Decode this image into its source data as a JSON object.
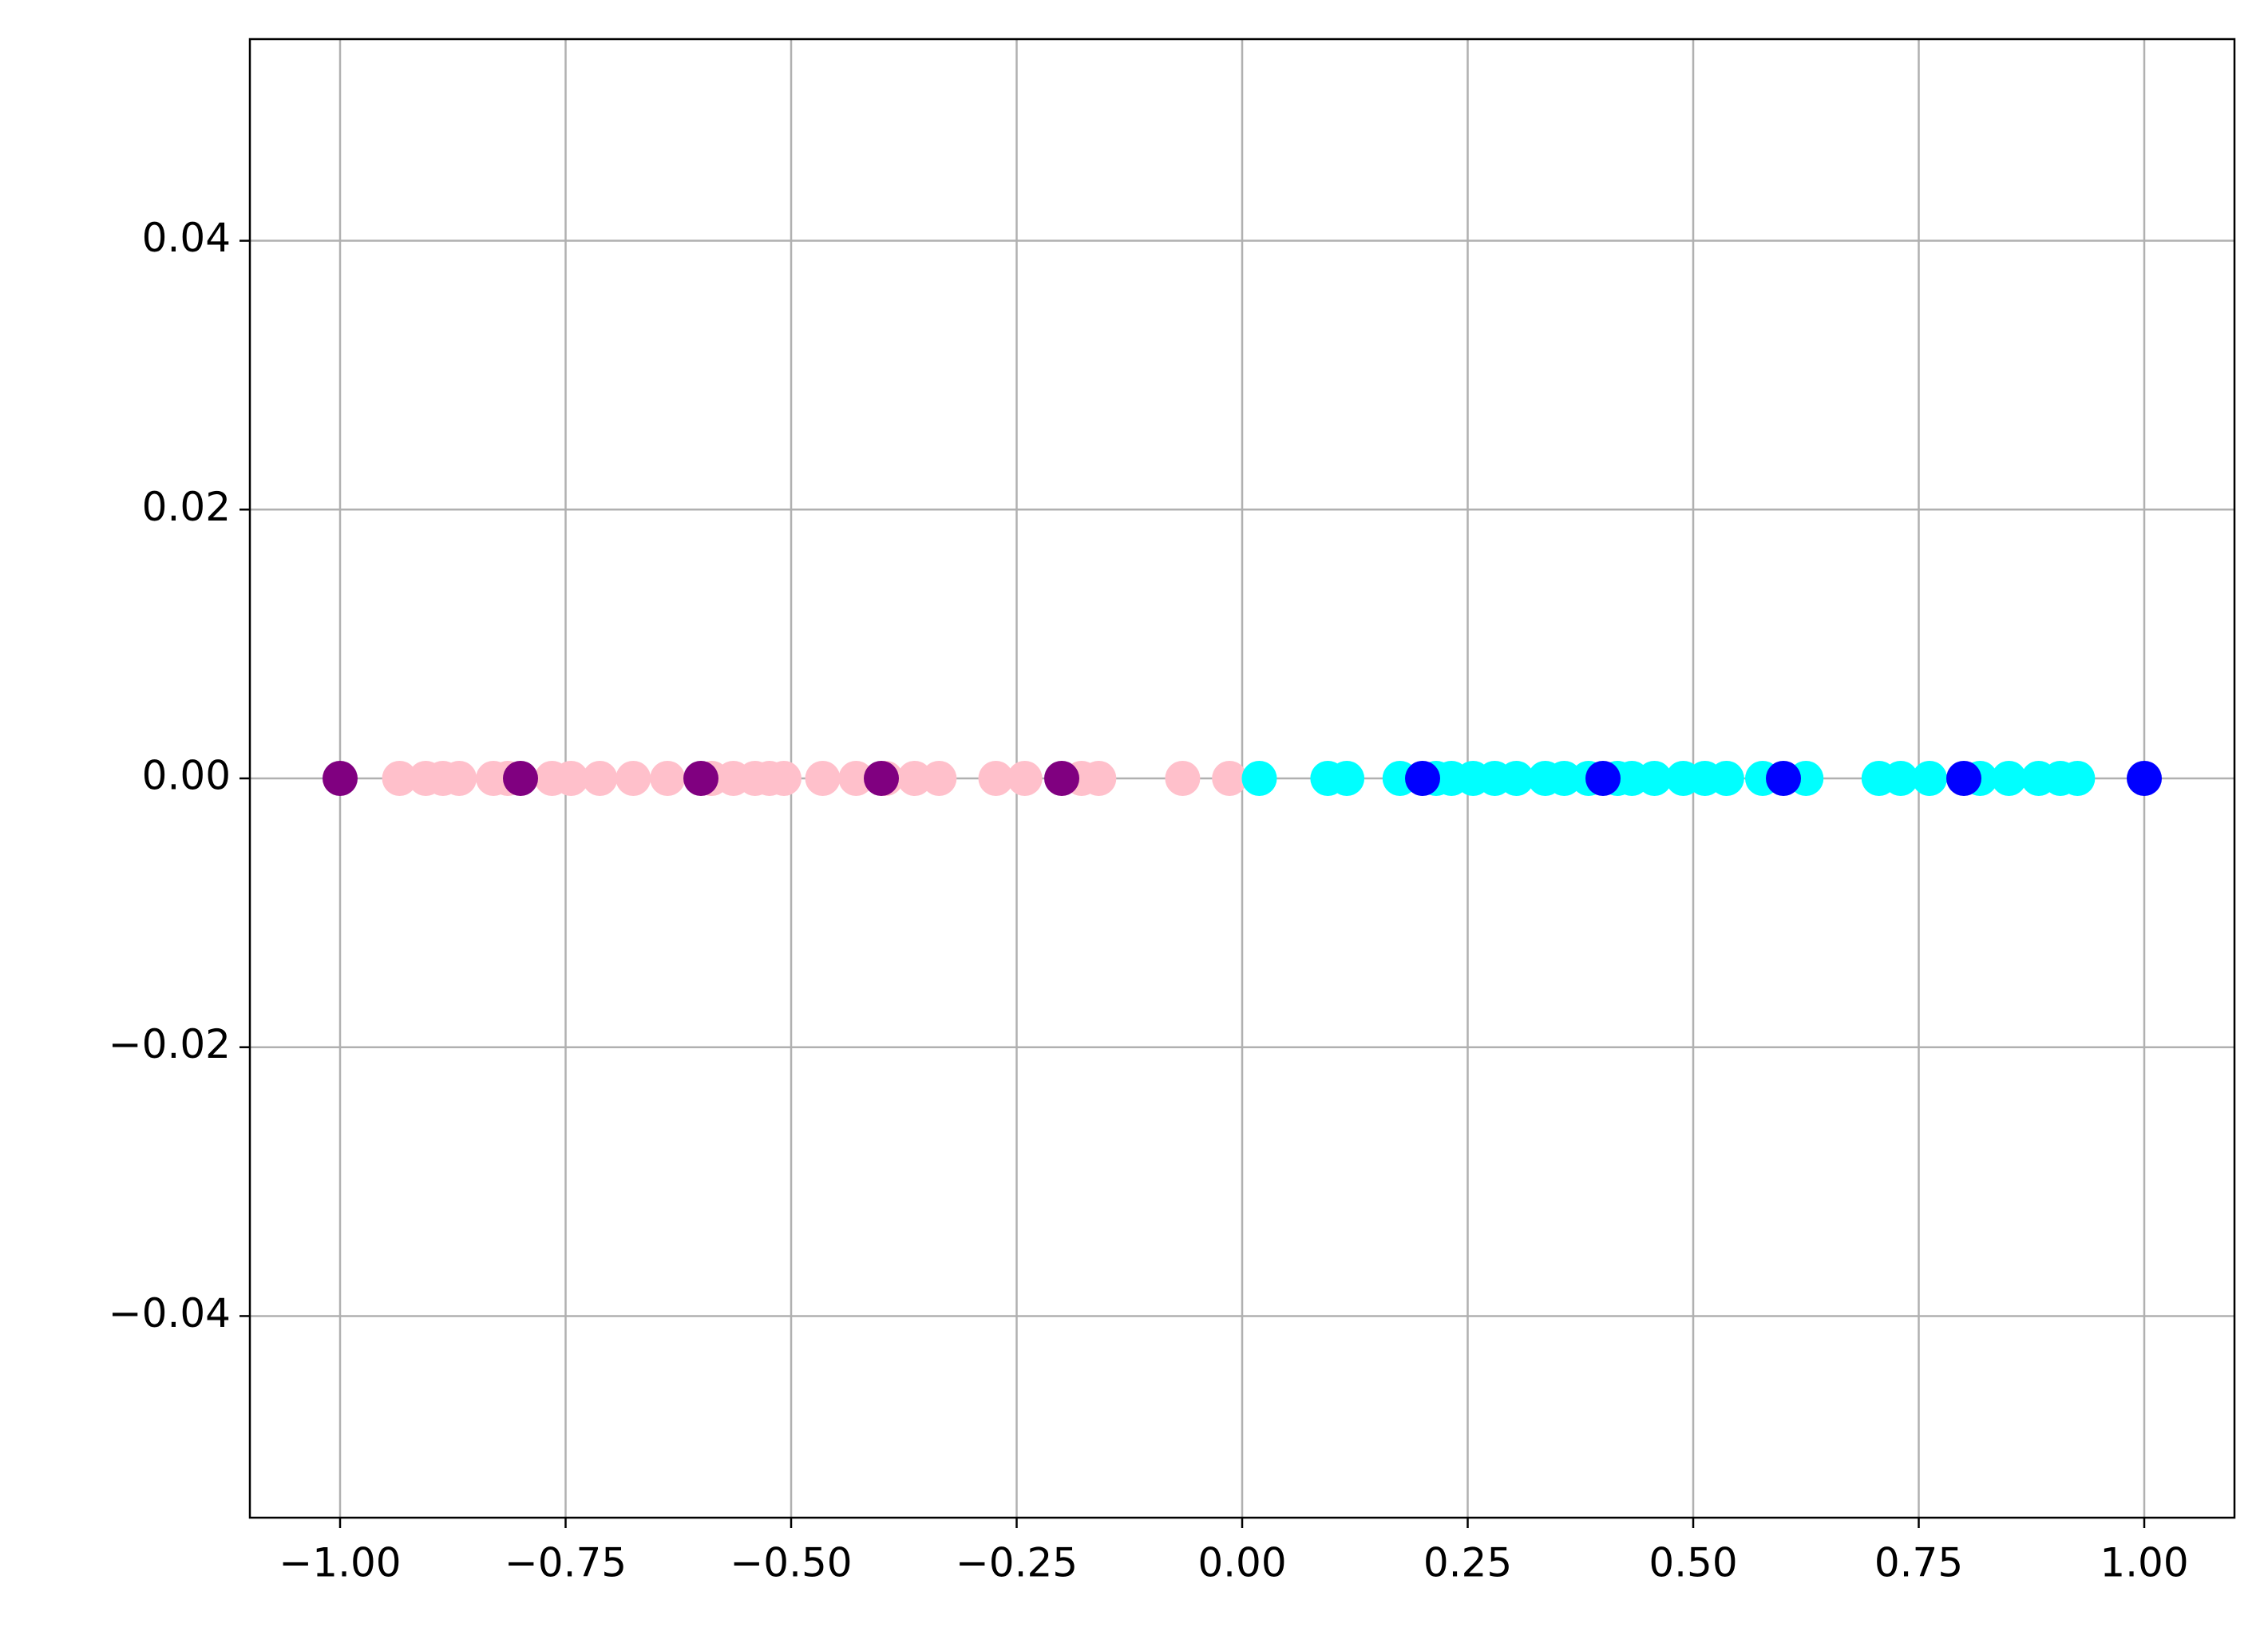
{
  "chart_data": {
    "type": "scatter",
    "xlim": [
      -1.1,
      1.1
    ],
    "ylim": [
      -0.055,
      0.055
    ],
    "xticks": [
      {
        "value": -1,
        "label": "−1.00"
      },
      {
        "value": -0.75,
        "label": "−0.75"
      },
      {
        "value": -0.5,
        "label": "−0.50"
      },
      {
        "value": -0.25,
        "label": "−0.25"
      },
      {
        "value": 0,
        "label": "0.00"
      },
      {
        "value": 0.25,
        "label": "0.25"
      },
      {
        "value": 0.5,
        "label": "0.50"
      },
      {
        "value": 0.75,
        "label": "0.75"
      },
      {
        "value": 1,
        "label": "1.00"
      }
    ],
    "yticks": [
      {
        "value": -0.04,
        "label": "−0.04"
      },
      {
        "value": -0.02,
        "label": "−0.02"
      },
      {
        "value": 0,
        "label": "0.00"
      },
      {
        "value": 0.02,
        "label": "0.02"
      },
      {
        "value": 0.04,
        "label": "0.04"
      }
    ],
    "grid": true,
    "series": [
      {
        "color": "pink",
        "x": [
          -0.934,
          -0.905,
          -0.886,
          -0.868,
          -0.83,
          -0.814,
          -0.765,
          -0.744,
          -0.712,
          -0.675,
          -0.637,
          -0.588,
          -0.564,
          -0.54,
          -0.524,
          -0.508,
          -0.465,
          -0.428,
          -0.395,
          -0.363,
          -0.336,
          -0.273,
          -0.241,
          -0.178,
          -0.159,
          -0.066,
          -0.014
        ],
        "values": [
          0,
          0,
          0,
          0,
          0,
          0,
          0,
          0,
          0,
          0,
          0,
          0,
          0,
          0,
          0,
          0,
          0,
          0,
          0,
          0,
          0,
          0,
          0,
          0,
          0,
          0,
          0
        ]
      },
      {
        "color": "purple",
        "x": [
          -1,
          -0.8,
          -0.6,
          -0.4,
          -0.2
        ],
        "values": [
          0,
          0,
          0,
          0,
          0
        ]
      },
      {
        "color": "cyan",
        "x": [
          0.019,
          0.095,
          0.116,
          0.175,
          0.215,
          0.232,
          0.256,
          0.28,
          0.304,
          0.336,
          0.357,
          0.384,
          0.416,
          0.432,
          0.457,
          0.489,
          0.513,
          0.537,
          0.577,
          0.625,
          0.706,
          0.73,
          0.762,
          0.818,
          0.85,
          0.883,
          0.907,
          0.926
        ],
        "values": [
          0,
          0,
          0,
          0,
          0,
          0,
          0,
          0,
          0,
          0,
          0,
          0,
          0,
          0,
          0,
          0,
          0,
          0,
          0,
          0,
          0,
          0,
          0,
          0,
          0,
          0,
          0,
          0
        ]
      },
      {
        "color": "blue",
        "x": [
          0.2,
          0.4,
          0.6,
          0.8,
          1.0
        ],
        "values": [
          0,
          0,
          0,
          0,
          0
        ]
      }
    ]
  }
}
